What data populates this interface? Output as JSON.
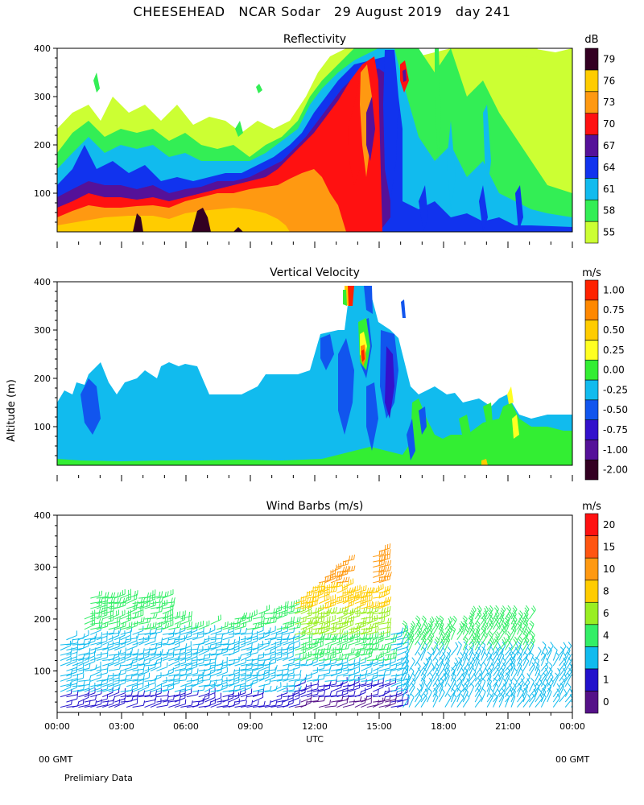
{
  "title": "CHEESEHEAD   NCAR Sodar   29 August 2019   day 241",
  "y_axis_title": "Altitude (m)",
  "footer": {
    "left_gmt": "00 GMT",
    "right_gmt": "00 GMT",
    "note": "Prelimiary Data"
  },
  "chart_data": [
    {
      "type": "heatmap",
      "title": "Reflectivity",
      "units": "dB",
      "ylim": [
        20,
        400
      ],
      "yticks": [
        "100",
        "200",
        "300",
        "400"
      ],
      "ytick_values": [
        100,
        200,
        300,
        400
      ],
      "colorbar": {
        "labels": [
          "55",
          "58",
          "61",
          "64",
          "67",
          "70",
          "73",
          "76",
          "79"
        ],
        "colors": [
          "#ccff33",
          "#33ee55",
          "#11bbee",
          "#1133ee",
          "#551199",
          "#ff1111",
          "#ff9911",
          "#ffcc00",
          "#330022"
        ]
      }
    },
    {
      "type": "heatmap",
      "title": "Vertical Velocity",
      "units": "m/s",
      "ylim": [
        20,
        400
      ],
      "yticks": [
        "100",
        "200",
        "300",
        "400"
      ],
      "ytick_values": [
        100,
        200,
        300,
        400
      ],
      "colorbar": {
        "labels": [
          "-2.00",
          "-1.00",
          "-0.75",
          "-0.50",
          "-0.25",
          "0.00",
          "0.25",
          "0.50",
          "0.75",
          "1.00"
        ],
        "colors": [
          "#330022",
          "#551199",
          "#3311cc",
          "#1155ee",
          "#11bbee",
          "#33ee33",
          "#ffff22",
          "#ffcc00",
          "#ff8800",
          "#ff2200"
        ]
      }
    },
    {
      "type": "scatter",
      "title": "Wind Barbs (m/s)",
      "units": "m/s",
      "ylim": [
        20,
        400
      ],
      "yticks": [
        "100",
        "200",
        "300",
        "400"
      ],
      "ytick_values": [
        100,
        200,
        300,
        400
      ],
      "colorbar": {
        "labels": [
          "0",
          "1",
          "2",
          "4",
          "6",
          "8",
          "10",
          "15",
          "20"
        ],
        "colors": [
          "#551188",
          "#2211cc",
          "#11bbee",
          "#33ee66",
          "#99ee22",
          "#ffcc00",
          "#ff9911",
          "#ff5511",
          "#ff1111"
        ]
      }
    }
  ],
  "x_axis": {
    "ticks": [
      "00:00",
      "03:00",
      "06:00",
      "09:00",
      "12:00",
      "15:00",
      "18:00",
      "21:00",
      "00:00"
    ],
    "tick_hours": [
      0,
      3,
      6,
      9,
      12,
      15,
      18,
      21,
      24
    ],
    "label": "UTC",
    "xlim_hours": [
      0,
      24
    ]
  }
}
